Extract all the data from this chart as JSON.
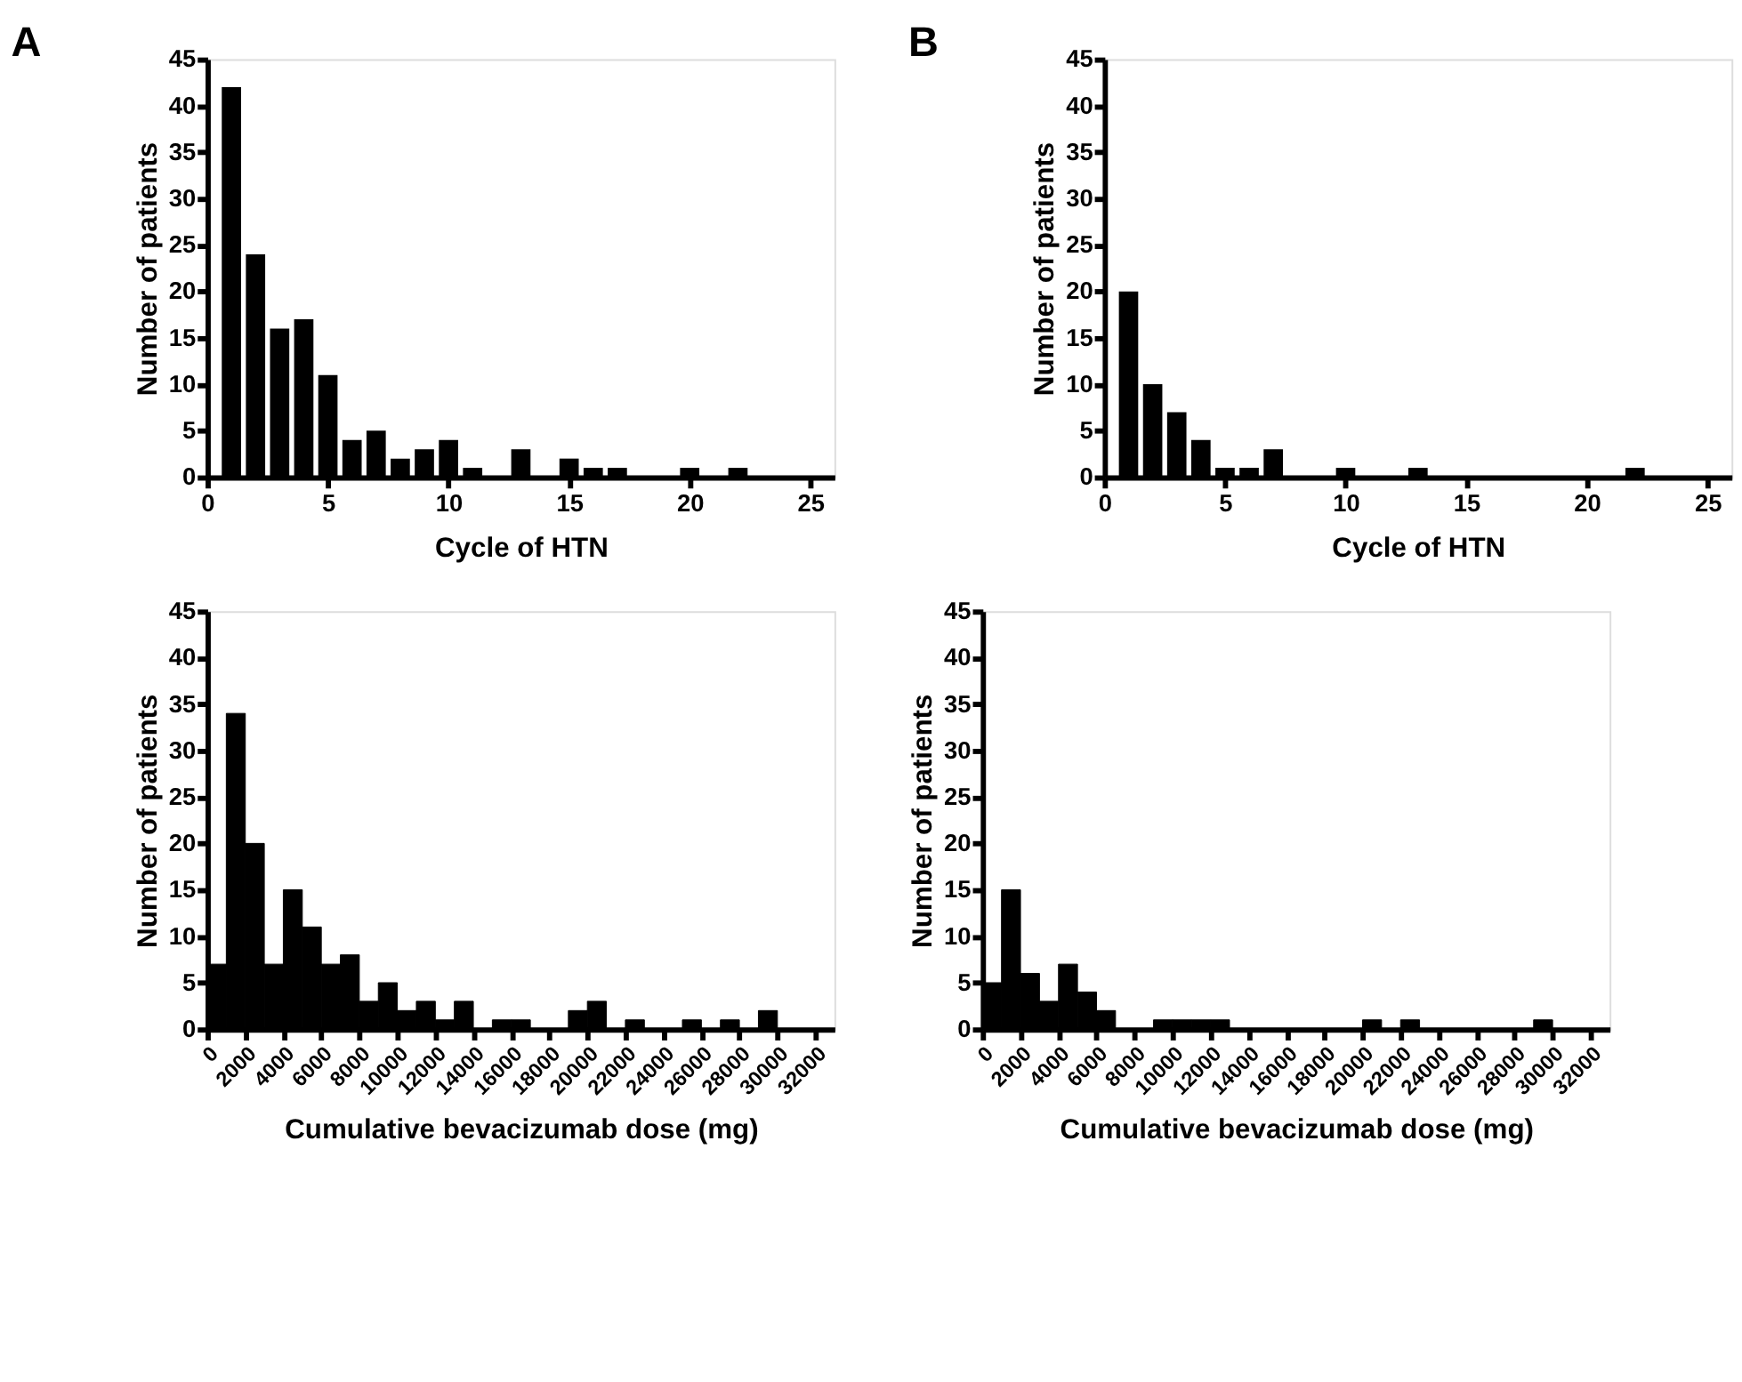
{
  "chart_data": [
    {
      "type": "bar",
      "title": "A",
      "xlabel": "Cycle of HTN",
      "ylabel": "Number of patients",
      "x": [
        1,
        2,
        3,
        4,
        5,
        6,
        7,
        8,
        9,
        10,
        11,
        13,
        15,
        16,
        17,
        20,
        22
      ],
      "series": [
        {
          "color": "#000000",
          "values": [
            42,
            24,
            16,
            17,
            11,
            4,
            5,
            2,
            3,
            4,
            1,
            3,
            2,
            1,
            1,
            1,
            1
          ]
        }
      ],
      "xlim": [
        0,
        26
      ],
      "xticks": [
        0,
        5,
        10,
        15,
        20,
        25
      ],
      "ylim": [
        0,
        45
      ],
      "yticks": [
        0,
        5,
        10,
        15,
        20,
        25,
        30,
        35,
        40,
        45
      ],
      "grid": false
    },
    {
      "type": "bar",
      "title": "B",
      "xlabel": "Cycle of HTN",
      "ylabel": "Number of patients",
      "x": [
        1,
        2,
        3,
        4,
        5,
        6,
        7,
        10,
        13,
        22
      ],
      "series": [
        {
          "color": "#000000",
          "values": [
            20,
            10,
            7,
            4,
            1,
            1,
            3,
            1,
            1,
            1
          ]
        }
      ],
      "xlim": [
        0,
        26
      ],
      "xticks": [
        0,
        5,
        10,
        15,
        20,
        25
      ],
      "ylim": [
        0,
        45
      ],
      "yticks": [
        0,
        5,
        10,
        15,
        20,
        25,
        30,
        35,
        40,
        45
      ],
      "grid": false
    },
    {
      "type": "histogram",
      "xlabel": "Cumulative bevacizumab dose (mg)",
      "ylabel": "Number of patients",
      "bins": [
        0,
        1000,
        2000,
        3000,
        4000,
        5000,
        6000,
        7000,
        8000,
        9000,
        10000,
        11000,
        12000,
        13000,
        14000,
        15000,
        16000,
        17000,
        18000,
        19000,
        20000,
        21000,
        22000,
        23000,
        24000,
        25000,
        26000,
        27000,
        28000,
        29000,
        30000,
        31000,
        32000
      ],
      "series": [
        {
          "color": "#000000",
          "values": [
            7,
            34,
            20,
            7,
            15,
            11,
            7,
            8,
            3,
            5,
            2,
            3,
            1,
            3,
            0,
            1,
            1,
            0,
            0,
            2,
            3,
            0,
            1,
            0,
            0,
            1,
            0,
            1,
            0,
            2,
            0,
            0
          ]
        }
      ],
      "xlim": [
        0,
        33000
      ],
      "xticks": [
        0,
        2000,
        4000,
        6000,
        8000,
        10000,
        12000,
        14000,
        16000,
        18000,
        20000,
        22000,
        24000,
        26000,
        28000,
        30000,
        32000
      ],
      "ylim": [
        0,
        45
      ],
      "yticks": [
        0,
        5,
        10,
        15,
        20,
        25,
        30,
        35,
        40,
        45
      ],
      "grid": false
    },
    {
      "type": "histogram",
      "xlabel": "Cumulative bevacizumab dose (mg)",
      "ylabel": "Number of patients",
      "bins": [
        0,
        1000,
        2000,
        3000,
        4000,
        5000,
        6000,
        7000,
        8000,
        9000,
        10000,
        11000,
        12000,
        13000,
        14000,
        15000,
        16000,
        17000,
        18000,
        19000,
        20000,
        21000,
        22000,
        23000,
        24000,
        25000,
        26000,
        27000,
        28000,
        29000,
        30000,
        31000,
        32000
      ],
      "series": [
        {
          "color": "#000000",
          "values": [
            5,
            15,
            6,
            3,
            7,
            4,
            2,
            0,
            0,
            1,
            1,
            1,
            1,
            0,
            0,
            0,
            0,
            0,
            0,
            0,
            1,
            0,
            1,
            0,
            0,
            0,
            0,
            0,
            0,
            1,
            0,
            0
          ]
        }
      ],
      "xlim": [
        0,
        33000
      ],
      "xticks": [
        0,
        2000,
        4000,
        6000,
        8000,
        10000,
        12000,
        14000,
        16000,
        18000,
        20000,
        22000,
        24000,
        26000,
        28000,
        30000,
        32000
      ],
      "ylim": [
        0,
        45
      ],
      "yticks": [
        0,
        5,
        10,
        15,
        20,
        25,
        30,
        35,
        40,
        45
      ],
      "grid": false
    }
  ]
}
